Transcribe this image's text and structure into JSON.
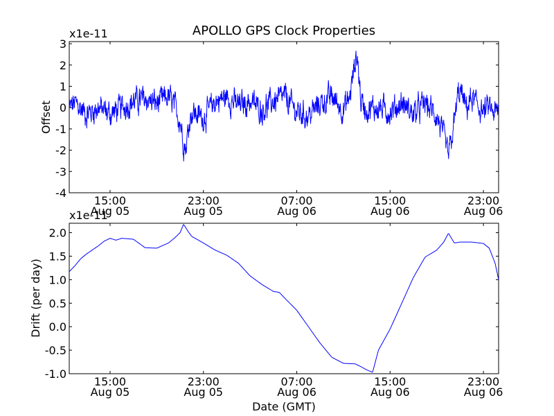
{
  "chart_data": [
    {
      "type": "line",
      "title": "APOLLO GPS Clock Properties",
      "xlabel": "",
      "ylabel": "Offset",
      "y_multiplier_label": "x1e-11",
      "ylim": [
        -4,
        3.1
      ],
      "yticks": [
        -4,
        -3,
        -2,
        -1,
        0,
        1,
        2,
        3
      ],
      "ytick_labels": [
        "-4",
        "-3",
        "-2",
        "-1",
        "0",
        "1",
        "2",
        "3"
      ],
      "xlim_hours": [
        11.5,
        48.3
      ],
      "xticks_hours": [
        15,
        23,
        31,
        39,
        47
      ],
      "xtick_labels": [
        [
          "15:00",
          "Aug 05"
        ],
        [
          "23:00",
          "Aug 05"
        ],
        [
          "07:00",
          "Aug 06"
        ],
        [
          "15:00",
          "Aug 06"
        ],
        [
          "23:00",
          "Aug 06"
        ]
      ],
      "color": "#0000ff",
      "noise_amplitude": 0.55,
      "x": [
        11.5,
        12.0,
        13.0,
        14.0,
        15.0,
        16.0,
        17.0,
        18.0,
        19.0,
        20.0,
        20.5,
        21.0,
        21.3,
        21.5,
        21.8,
        22.0,
        23.0,
        24.0,
        25.0,
        26.0,
        27.0,
        28.0,
        29.0,
        30.0,
        31.0,
        32.0,
        33.0,
        34.0,
        35.0,
        35.5,
        36.0,
        36.2,
        36.5,
        37.0,
        38.0,
        39.0,
        40.0,
        41.0,
        42.0,
        43.0,
        43.5,
        44.0,
        44.4,
        44.8,
        45.0,
        45.5,
        46.0,
        47.0,
        47.5,
        48.0,
        48.3
      ],
      "y": [
        0.0,
        0.2,
        -0.3,
        0.0,
        -0.3,
        0.0,
        0.3,
        0.4,
        0.2,
        0.5,
        0.1,
        -0.6,
        -1.6,
        -1.9,
        -0.6,
        -0.2,
        -0.5,
        0.3,
        0.5,
        0.1,
        0.3,
        -0.1,
        0.3,
        0.5,
        -0.2,
        -0.4,
        0.2,
        0.5,
        -0.1,
        0.4,
        2.1,
        2.4,
        0.3,
        -0.1,
        0.0,
        -0.2,
        0.2,
        -0.3,
        0.2,
        -0.4,
        -1.2,
        -2.3,
        -1.1,
        0.5,
        0.8,
        0.0,
        0.4,
        -0.2,
        0.0,
        -0.3,
        -0.2
      ]
    },
    {
      "type": "line",
      "title": "",
      "xlabel": "Date (GMT)",
      "ylabel": "Drift (per day)",
      "y_multiplier_label": "x1e-11",
      "ylim": [
        -1.0,
        2.2
      ],
      "yticks": [
        -1.0,
        -0.5,
        0.0,
        0.5,
        1.0,
        1.5,
        2.0
      ],
      "ytick_labels": [
        "-1.0",
        "-0.5",
        "0.0",
        "0.5",
        "1.0",
        "1.5",
        "2.0"
      ],
      "xlim_hours": [
        11.5,
        48.3
      ],
      "xticks_hours": [
        15,
        23,
        31,
        39,
        47
      ],
      "xtick_labels": [
        [
          "15:00",
          "Aug 05"
        ],
        [
          "23:00",
          "Aug 05"
        ],
        [
          "07:00",
          "Aug 06"
        ],
        [
          "15:00",
          "Aug 06"
        ],
        [
          "23:00",
          "Aug 06"
        ]
      ],
      "color": "#0000ff",
      "x": [
        11.5,
        12.0,
        12.5,
        13.0,
        14.0,
        14.5,
        15.0,
        15.5,
        16.0,
        17.0,
        18.0,
        19.0,
        20.0,
        20.5,
        21.0,
        21.3,
        21.7,
        22.0,
        23.0,
        24.0,
        25.0,
        26.0,
        27.0,
        28.0,
        29.0,
        29.5,
        30.0,
        31.0,
        32.0,
        33.0,
        34.0,
        35.0,
        36.0,
        36.5,
        37.0,
        37.5,
        38.0,
        39.0,
        40.0,
        41.0,
        42.0,
        43.0,
        43.6,
        44.0,
        44.5,
        45.0,
        46.0,
        47.0,
        47.5,
        48.0,
        48.3
      ],
      "y": [
        1.17,
        1.3,
        1.45,
        1.55,
        1.72,
        1.82,
        1.88,
        1.84,
        1.88,
        1.86,
        1.68,
        1.67,
        1.78,
        1.88,
        2.0,
        2.18,
        2.02,
        1.92,
        1.78,
        1.63,
        1.52,
        1.35,
        1.08,
        0.9,
        0.75,
        0.73,
        0.6,
        0.35,
        0.0,
        -0.35,
        -0.65,
        -0.78,
        -0.79,
        -0.85,
        -0.92,
        -0.97,
        -0.5,
        -0.05,
        0.5,
        1.05,
        1.48,
        1.63,
        1.8,
        1.99,
        1.78,
        1.8,
        1.8,
        1.77,
        1.67,
        1.35,
        1.0
      ]
    }
  ]
}
